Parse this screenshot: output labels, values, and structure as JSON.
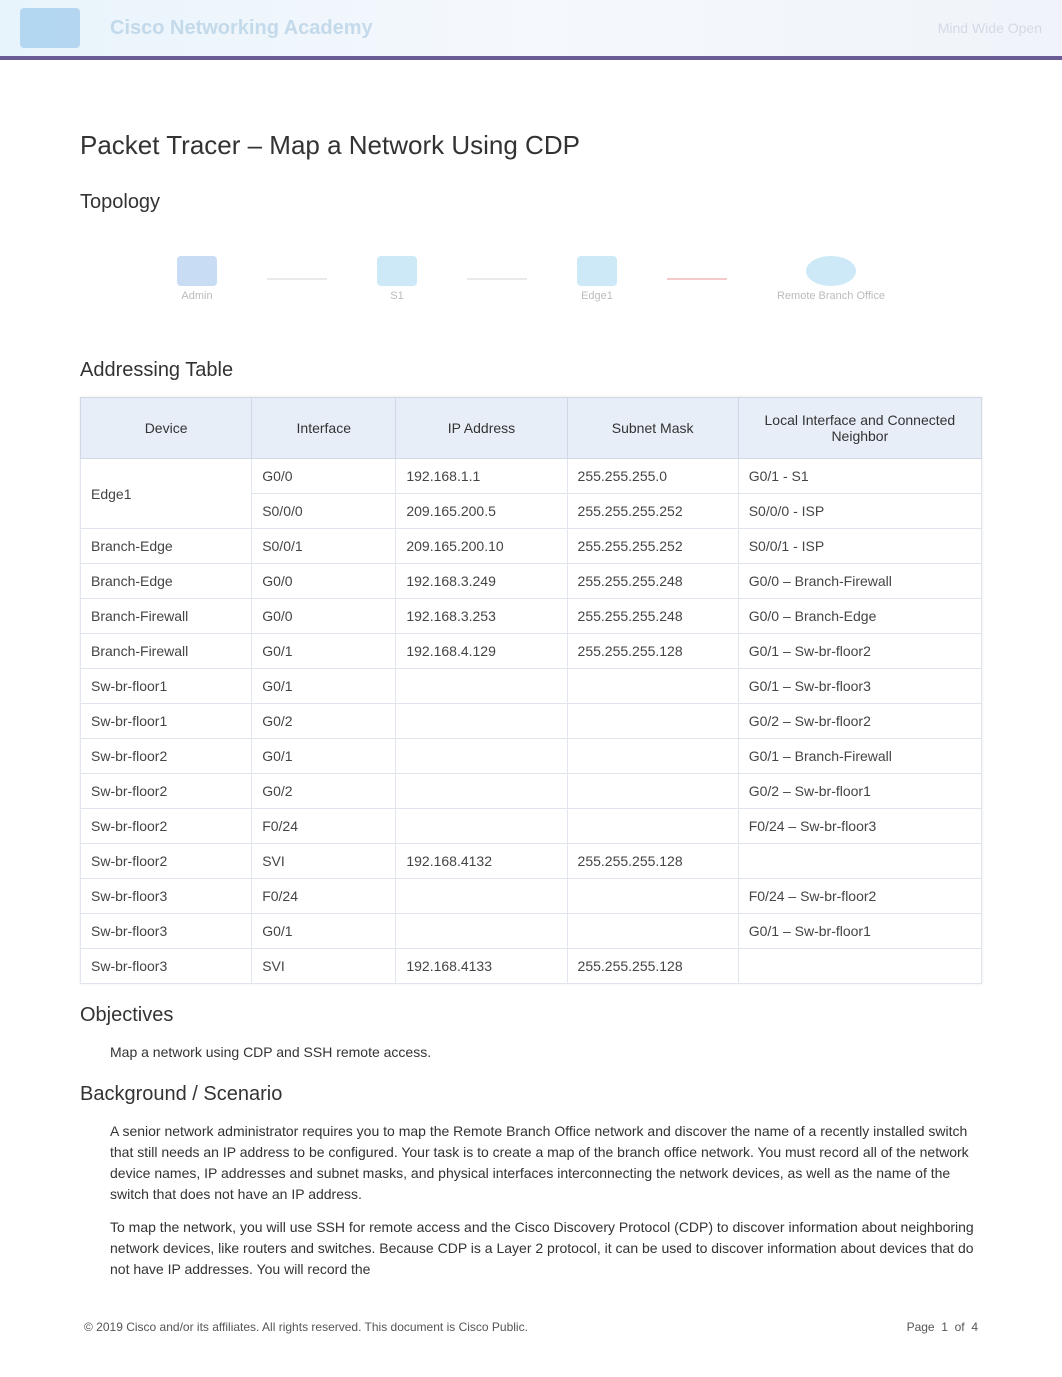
{
  "header": {
    "academy": "Cisco Networking Academy",
    "right_text": "Mind Wide Open"
  },
  "title": "Packet Tracer – Map a Network Using CDP",
  "sections": {
    "topology": "Topology",
    "addressing_table": "Addressing Table",
    "objectives": "Objectives",
    "background": "Background / Scenario"
  },
  "topology": {
    "nodes": [
      {
        "label": "Admin",
        "type": "pc",
        "color": "#4a90d9"
      },
      {
        "label": "S1",
        "type": "switch",
        "color": "#5bb5e8"
      },
      {
        "label": "Edge1",
        "type": "router",
        "color": "#5bb5e8"
      },
      {
        "label": "Remote Branch Office",
        "type": "cloud",
        "color": "#5bb5e8"
      }
    ],
    "link_colors": [
      "#bbb",
      "#bbb",
      "#d9534f"
    ]
  },
  "table": {
    "columns": [
      "Device",
      "Interface",
      "IP Address",
      "Subnet Mask",
      "Local Interface and Connected Neighbor"
    ],
    "rows": [
      [
        "Edge1",
        "G0/0",
        "192.168.1.1",
        "255.255.255.0",
        "G0/1 - S1"
      ],
      [
        "",
        "S0/0/0",
        "209.165.200.5",
        "255.255.255.252",
        "S0/0/0 - ISP"
      ],
      [
        "Branch-Edge",
        "S0/0/1",
        "209.165.200.10",
        "255.255.255.252",
        "S0/0/1 - ISP"
      ],
      [
        "Branch-Edge",
        "G0/0",
        "192.168.3.249",
        "255.255.255.248",
        "G0/0 – Branch-Firewall"
      ],
      [
        "Branch-Firewall",
        "G0/0",
        "192.168.3.253",
        "255.255.255.248",
        "G0/0 – Branch-Edge"
      ],
      [
        "Branch-Firewall",
        "G0/1",
        "192.168.4.129",
        "255.255.255.128",
        "G0/1 – Sw-br-floor2"
      ],
      [
        "Sw-br-floor1",
        "G0/1",
        "",
        "",
        "G0/1 – Sw-br-floor3"
      ],
      [
        "Sw-br-floor1",
        "G0/2",
        "",
        "",
        "G0/2 – Sw-br-floor2"
      ],
      [
        "Sw-br-floor2",
        "G0/1",
        "",
        "",
        "G0/1 – Branch-Firewall"
      ],
      [
        "Sw-br-floor2",
        "G0/2",
        "",
        "",
        "G0/2 – Sw-br-floor1"
      ],
      [
        "Sw-br-floor2",
        "F0/24",
        "",
        "",
        "F0/24 – Sw-br-floor3"
      ],
      [
        "Sw-br-floor2",
        "SVI",
        "192.168.4132",
        "255.255.255.128",
        ""
      ],
      [
        "Sw-br-floor3",
        "F0/24",
        "",
        "",
        "F0/24 – Sw-br-floor2"
      ],
      [
        "Sw-br-floor3",
        "G0/1",
        "",
        "",
        "G0/1 – Sw-br-floor1"
      ],
      [
        "Sw-br-floor3",
        "SVI",
        "192.168.4133",
        "255.255.255.128",
        ""
      ]
    ],
    "merge_first_two_rows_device": true,
    "header_bg": "#e8eef7",
    "border_color": "#d0d8e8",
    "font_size": 14
  },
  "objectives_text": "Map a network using CDP and SSH remote access.",
  "background_paragraphs": [
    "A senior network administrator requires you to map the Remote Branch Office network and discover the name of a recently installed switch that still needs an IP address to be configured. Your task is to create a map of the branch office network. You must record all of the network device names, IP addresses and subnet masks, and physical interfaces interconnecting the network devices, as well as the name of the switch that does not have an IP address.",
    "To map the network, you will use SSH for remote access and the Cisco Discovery Protocol (CDP) to discover information about neighboring network devices, like routers and switches. Because CDP is a Layer 2 protocol, it can be used to discover information about devices that do not have IP addresses. You will record the"
  ],
  "footer": {
    "copyright": "© 2019 Cisco and/or its affiliates. All rights reserved. This document is Cisco Public.",
    "page_label": "Page",
    "page_current": "1",
    "page_of": "of",
    "page_total": "4"
  },
  "colors": {
    "banner_gradient_start": "#e8f4fb",
    "banner_gradient_end": "#f0f4fa",
    "banner_border": "#6b5b95",
    "text": "#333333",
    "muted": "#bbbbbb"
  }
}
